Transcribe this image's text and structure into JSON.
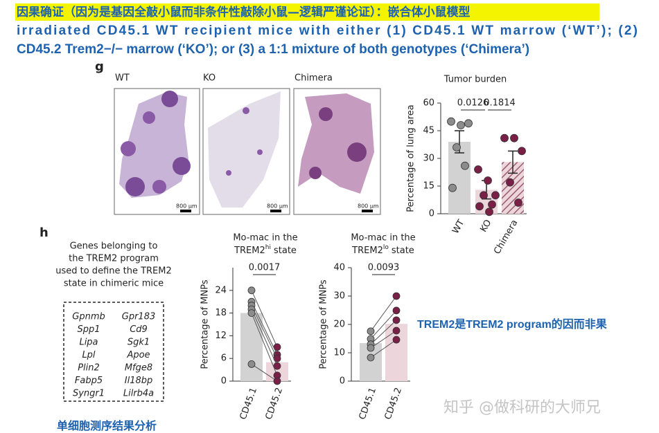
{
  "header": {
    "title": "因果确证（因为是基因全敲小鼠而非条件性敲除小鼠—逻辑严谨论证）：嵌合体小鼠模型",
    "lines": [
      "irradiated CD45.1 WT recipient mice with either (1) CD45.1 WT marrow (‘WT’); (2)",
      "CD45.2 Trem2−/− marrow (‘KO’); or (3) a 1:1 mixture of both genotypes (‘Chimera’)"
    ]
  },
  "panel_g": {
    "label": "g",
    "images": [
      {
        "title": "WT",
        "scale": "800 µm"
      },
      {
        "title": "KO",
        "scale": "800 µm"
      },
      {
        "title": "Chimera",
        "scale": "800 µm"
      }
    ]
  },
  "panel_h": {
    "label": "h",
    "caption": [
      "Genes belonging to",
      "the TREM2 program",
      "used to define the TREM2",
      "state in chimeric mice"
    ],
    "genes": [
      [
        "Gpnmb",
        "Gpr183"
      ],
      [
        "Spp1",
        "Cd9"
      ],
      [
        "Lipa",
        "Sgk1"
      ],
      [
        "Lpl",
        "Apoe"
      ],
      [
        "Plin2",
        "Mfge8"
      ],
      [
        "Fabp5",
        "Il18bp"
      ],
      [
        "Syngr1",
        "Lilrb4a"
      ]
    ]
  },
  "chart_data": [
    {
      "type": "bar",
      "title": "Tumor burden",
      "y_label": "Percentage of lung area",
      "categories": [
        "WT",
        "KO",
        "Chimera"
      ],
      "values": [
        39,
        13,
        28
      ],
      "errors": [
        6,
        5,
        6
      ],
      "points": [
        [
          50,
          48,
          49,
          36,
          26,
          14
        ],
        [
          24,
          18,
          10,
          10,
          5,
          4,
          1
        ],
        [
          41,
          41,
          34,
          17,
          6
        ]
      ],
      "bar_colors": [
        "#d2d2d2",
        "#ecd6db",
        "#ecd6db"
      ],
      "hatch": [
        false,
        false,
        true
      ],
      "point_colors": [
        "#8c8c8c",
        "#7a1f46",
        "#7a1f46"
      ],
      "pvalues": [
        "0.0126",
        "0.1814"
      ],
      "ylim": [
        0,
        60
      ],
      "yticks": [
        0,
        15,
        30,
        45,
        60
      ]
    },
    {
      "type": "paired-bar",
      "title": [
        "Mo-mac in the",
        "TREM2",
        "hi",
        "state"
      ],
      "y_label": "Percentage of MNPs",
      "categories": [
        "CD45.1",
        "CD45.2"
      ],
      "values": [
        18,
        5
      ],
      "pairs": [
        [
          24,
          9
        ],
        [
          21,
          7
        ],
        [
          20,
          6
        ],
        [
          19,
          4
        ],
        [
          18,
          1.5
        ],
        [
          4.5,
          0
        ]
      ],
      "bar_colors": [
        "#d2d2d2",
        "#ecd6db"
      ],
      "point_colors": [
        "#8c8c8c",
        "#7a1f46"
      ],
      "pvalues": [
        "0.0017"
      ],
      "ylim": [
        0,
        30
      ],
      "yticks": [
        0,
        6,
        12,
        18,
        24
      ]
    },
    {
      "type": "paired-bar",
      "title": [
        "Mo-mac in the",
        "TREM2",
        "lo",
        "state"
      ],
      "y_label": "Percentage of MNPs",
      "categories": [
        "CD45.1",
        "CD45.2"
      ],
      "values": [
        13.4,
        20.2
      ],
      "pairs": [
        [
          17.6,
          30
        ],
        [
          14.9,
          24.9
        ],
        [
          13,
          21.5
        ],
        [
          11.7,
          17.8
        ],
        [
          8.3,
          14.6
        ]
      ],
      "bar_colors": [
        "#d2d2d2",
        "#ecd6db"
      ],
      "point_colors": [
        "#8c8c8c",
        "#7a1f46"
      ],
      "pvalues": [
        "0.0093"
      ],
      "ylim": [
        0,
        40
      ],
      "yticks": [
        0,
        10,
        20,
        30,
        40
      ]
    }
  ],
  "annotations": {
    "conclusion": "TREM2是TREM2 program的因而非果",
    "bottom": "单细胞测序结果分析",
    "watermark": "知乎 @做科研的大师兄"
  }
}
